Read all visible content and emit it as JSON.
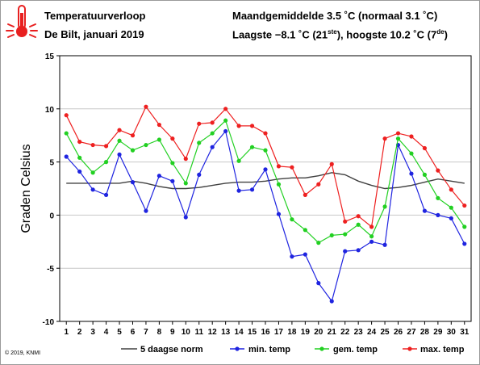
{
  "header": {
    "title": "Temperatuurverloop",
    "subtitle": "De Bilt, januari 2019",
    "stats_line1": "Maandgemiddelde 3.5 ˚C (normaal 3.1 ˚C)",
    "stats_line2_prefix": "Laagste −8.1 ˚C (21",
    "stats_line2_sup1": "ste",
    "stats_line2_mid": "), hoogste 10.2 ˚C (7",
    "stats_line2_sup2": "de",
    "stats_line2_suffix": ")"
  },
  "icon": "thermometer-icon",
  "copyright": "© 2019, KNMI",
  "colors": {
    "norm": "#404040",
    "min": "#1f24e0",
    "gem": "#22d022",
    "max": "#ee2020",
    "grid": "#c8c8c8",
    "icon": "#e82020"
  },
  "chart_data": {
    "type": "line",
    "ylabel": "Graden Celsius",
    "xlabel": "",
    "ylim": [
      -10,
      15
    ],
    "yticks": [
      -10,
      -5,
      0,
      5,
      10,
      15
    ],
    "grid": true,
    "legend_position": "bottom",
    "x": [
      1,
      2,
      3,
      4,
      5,
      6,
      7,
      8,
      9,
      10,
      11,
      12,
      13,
      14,
      15,
      16,
      17,
      18,
      19,
      20,
      21,
      22,
      23,
      24,
      25,
      26,
      27,
      28,
      29,
      30,
      31
    ],
    "series": [
      {
        "name": "5 daagse norm",
        "color_key": "norm",
        "markers": false,
        "values": [
          3.0,
          3.0,
          3.0,
          3.0,
          3.0,
          3.2,
          3.0,
          2.7,
          2.5,
          2.5,
          2.6,
          2.8,
          3.0,
          3.1,
          3.1,
          3.2,
          3.4,
          3.5,
          3.5,
          3.7,
          4.0,
          3.8,
          3.2,
          2.8,
          2.5,
          2.6,
          2.8,
          3.1,
          3.4,
          3.2,
          3.0
        ]
      },
      {
        "name": "min. temp",
        "color_key": "min",
        "markers": true,
        "values": [
          5.5,
          4.1,
          2.4,
          1.9,
          5.7,
          3.1,
          0.4,
          3.7,
          3.2,
          -0.2,
          3.8,
          6.4,
          7.9,
          2.3,
          2.4,
          4.3,
          0.1,
          -3.9,
          -3.7,
          -6.4,
          -8.1,
          -3.4,
          -3.3,
          -2.5,
          -2.8,
          6.6,
          3.9,
          0.4,
          0.0,
          -0.3,
          -2.7
        ]
      },
      {
        "name": "gem. temp",
        "color_key": "gem",
        "markers": true,
        "values": [
          7.7,
          5.4,
          4.0,
          5.0,
          7.0,
          6.1,
          6.6,
          7.1,
          4.9,
          3.0,
          6.8,
          7.7,
          8.9,
          5.1,
          6.4,
          6.1,
          2.9,
          -0.4,
          -1.4,
          -2.6,
          -1.9,
          -1.8,
          -0.9,
          -2.0,
          0.8,
          7.2,
          5.8,
          3.8,
          1.6,
          0.7,
          -1.1
        ]
      },
      {
        "name": "max. temp",
        "color_key": "max",
        "markers": true,
        "values": [
          9.4,
          6.9,
          6.6,
          6.5,
          8.0,
          7.5,
          10.2,
          8.5,
          7.2,
          5.3,
          8.6,
          8.7,
          10.0,
          8.4,
          8.4,
          7.7,
          4.6,
          4.5,
          1.9,
          2.9,
          4.8,
          -0.6,
          -0.1,
          -1.1,
          7.2,
          7.7,
          7.4,
          6.3,
          4.2,
          2.4,
          0.9
        ]
      }
    ]
  }
}
